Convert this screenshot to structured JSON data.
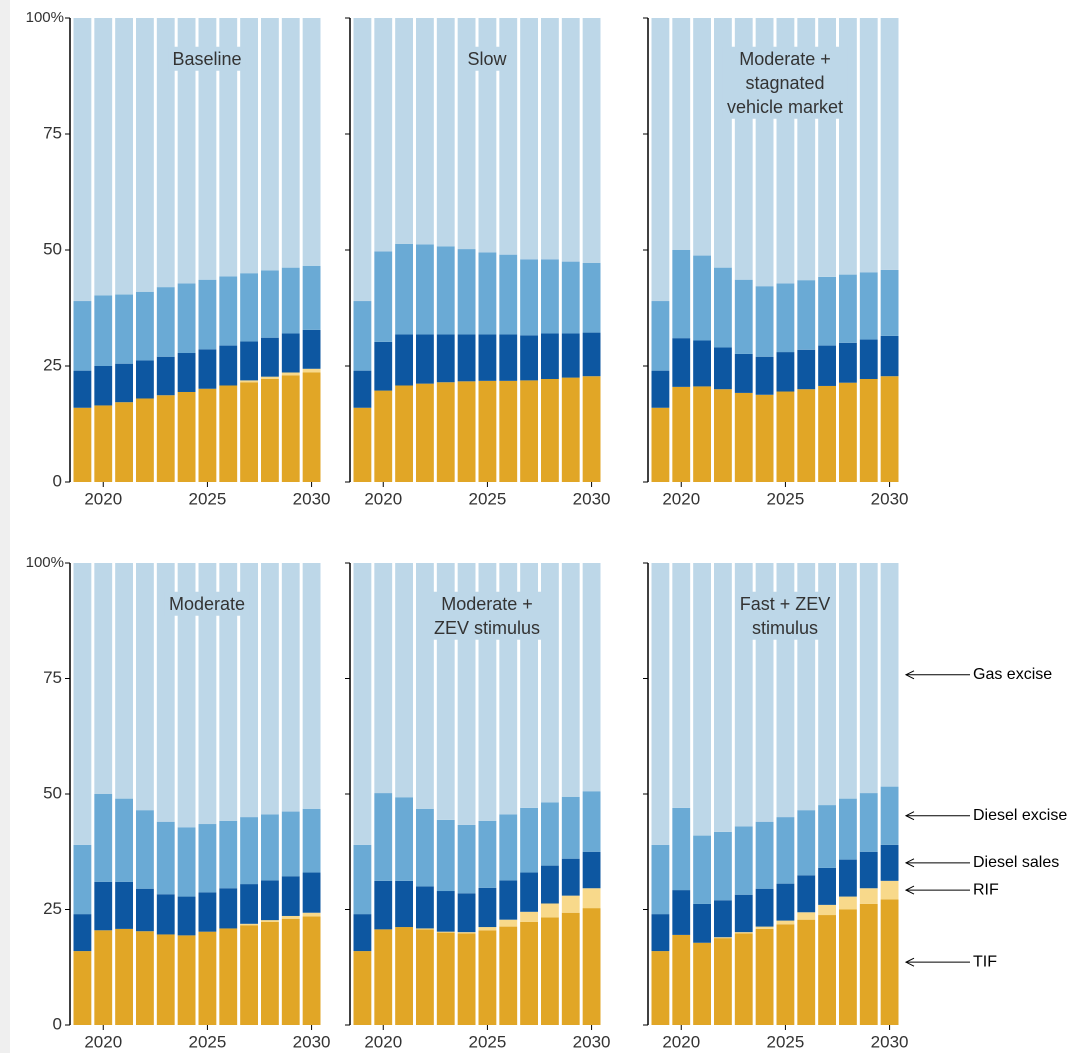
{
  "chart_data": [
    {
      "type": "bar",
      "stacked": true,
      "title": "Baseline",
      "x": [
        2019,
        2020,
        2021,
        2022,
        2023,
        2024,
        2025,
        2026,
        2027,
        2028,
        2029,
        2030
      ],
      "xlim": [
        2018.5,
        2030.5
      ],
      "xticks": [
        2020,
        2025,
        2030
      ],
      "ylim": [
        0,
        100
      ],
      "yticks": [
        0,
        25,
        50,
        75,
        {
          "value": 100,
          "label": "100%"
        }
      ],
      "series": [
        {
          "name": "TIF",
          "color": "#e1a626",
          "values": [
            16,
            16.5,
            17.2,
            18,
            18.7,
            19.4,
            20.1,
            20.8,
            21.5,
            22.2,
            23,
            23.6
          ]
        },
        {
          "name": "RIF",
          "color": "#f8d98b",
          "values": [
            0,
            0,
            0,
            0,
            0,
            0,
            0,
            0,
            0.4,
            0.5,
            0.6,
            0.8
          ]
        },
        {
          "name": "Diesel sales",
          "color": "#0d57a1",
          "values": [
            8,
            8.5,
            8.3,
            8.2,
            8.3,
            8.4,
            8.5,
            8.6,
            8.4,
            8.4,
            8.4,
            8.4
          ]
        },
        {
          "name": "Diesel excise",
          "color": "#6aaad5",
          "values": [
            15,
            15.2,
            14.9,
            14.8,
            15,
            15,
            15,
            14.9,
            14.7,
            14.5,
            14.2,
            13.8
          ]
        },
        {
          "name": "Gas excise",
          "color": "#bdd7e8",
          "values": [
            61,
            59.8,
            59.6,
            59,
            58,
            57.2,
            56.4,
            55.7,
            55,
            54.4,
            53.8,
            53.4
          ]
        }
      ]
    },
    {
      "type": "bar",
      "stacked": true,
      "title": "Slow",
      "x": [
        2019,
        2020,
        2021,
        2022,
        2023,
        2024,
        2025,
        2026,
        2027,
        2028,
        2029,
        2030
      ],
      "xlim": [
        2018.5,
        2030.5
      ],
      "xticks": [
        2020,
        2025,
        2030
      ],
      "ylim": [
        0,
        100
      ],
      "yticks": [
        0,
        25,
        50,
        75,
        {
          "value": 100,
          "label": "100%"
        }
      ],
      "series": [
        {
          "name": "TIF",
          "color": "#e1a626",
          "values": [
            16,
            19.7,
            20.8,
            21.2,
            21.5,
            21.7,
            21.8,
            21.8,
            21.9,
            22.2,
            22.5,
            22.8
          ]
        },
        {
          "name": "RIF",
          "color": "#f8d98b",
          "values": [
            0,
            0,
            0,
            0,
            0,
            0,
            0,
            0,
            0,
            0,
            0,
            0
          ]
        },
        {
          "name": "Diesel sales",
          "color": "#0d57a1",
          "values": [
            8,
            10.5,
            11,
            10.6,
            10.3,
            10.1,
            10,
            10,
            9.7,
            9.8,
            9.5,
            9.4
          ]
        },
        {
          "name": "Diesel excise",
          "color": "#6aaad5",
          "values": [
            15,
            19.5,
            19.5,
            19.4,
            19,
            18.4,
            17.7,
            17.2,
            16.4,
            16,
            15.5,
            15
          ]
        },
        {
          "name": "Gas excise",
          "color": "#bdd7e8",
          "values": [
            61,
            50.3,
            48.7,
            48.8,
            49.2,
            49.8,
            50.5,
            51,
            52,
            52,
            52.5,
            52.8
          ]
        }
      ]
    },
    {
      "type": "bar",
      "stacked": true,
      "title": "Moderate +\nstagnated\nvehicle market",
      "x": [
        2019,
        2020,
        2021,
        2022,
        2023,
        2024,
        2025,
        2026,
        2027,
        2028,
        2029,
        2030
      ],
      "xlim": [
        2018.5,
        2030.5
      ],
      "xticks": [
        2020,
        2025,
        2030
      ],
      "ylim": [
        0,
        100
      ],
      "yticks": [
        0,
        25,
        50,
        75,
        {
          "value": 100,
          "label": "100%"
        }
      ],
      "series": [
        {
          "name": "TIF",
          "color": "#e1a626",
          "values": [
            16,
            20.5,
            20.6,
            20,
            19.2,
            18.8,
            19.5,
            20,
            20.7,
            21.4,
            22.2,
            22.8
          ]
        },
        {
          "name": "RIF",
          "color": "#f8d98b",
          "values": [
            0,
            0,
            0,
            0,
            0,
            0,
            0,
            0,
            0,
            0,
            0,
            0
          ]
        },
        {
          "name": "Diesel sales",
          "color": "#0d57a1",
          "values": [
            8,
            10.5,
            9.9,
            9,
            8.4,
            8.2,
            8.5,
            8.5,
            8.7,
            8.6,
            8.5,
            8.7
          ]
        },
        {
          "name": "Diesel excise",
          "color": "#6aaad5",
          "values": [
            15,
            19,
            18.3,
            17.2,
            16,
            15.2,
            14.8,
            15,
            14.8,
            14.7,
            14.5,
            14.2
          ]
        },
        {
          "name": "Gas excise",
          "color": "#bdd7e8",
          "values": [
            61,
            50,
            51.2,
            53.8,
            56.4,
            57.8,
            57.2,
            56.5,
            55.8,
            55.3,
            54.8,
            54.3
          ]
        }
      ]
    },
    {
      "type": "bar",
      "stacked": true,
      "title": "Moderate",
      "x": [
        2019,
        2020,
        2021,
        2022,
        2023,
        2024,
        2025,
        2026,
        2027,
        2028,
        2029,
        2030
      ],
      "xlim": [
        2018.5,
        2030.5
      ],
      "xticks": [
        2020,
        2025,
        2030
      ],
      "ylim": [
        0,
        100
      ],
      "yticks": [
        0,
        25,
        50,
        75,
        {
          "value": 100,
          "label": "100%"
        }
      ],
      "series": [
        {
          "name": "TIF",
          "color": "#e1a626",
          "values": [
            16,
            20.5,
            20.8,
            20.3,
            19.6,
            19.4,
            20.2,
            20.9,
            21.6,
            22.3,
            23,
            23.5
          ]
        },
        {
          "name": "RIF",
          "color": "#f8d98b",
          "values": [
            0,
            0,
            0,
            0,
            0,
            0,
            0,
            0,
            0.3,
            0.4,
            0.6,
            0.8
          ]
        },
        {
          "name": "Diesel sales",
          "color": "#0d57a1",
          "values": [
            8,
            10.5,
            10.2,
            9.2,
            8.7,
            8.4,
            8.5,
            8.7,
            8.6,
            8.6,
            8.6,
            8.7
          ]
        },
        {
          "name": "Diesel excise",
          "color": "#6aaad5",
          "values": [
            15,
            19,
            18,
            17,
            15.7,
            15,
            14.8,
            14.6,
            14.5,
            14.3,
            14,
            13.8
          ]
        },
        {
          "name": "Gas excise",
          "color": "#bdd7e8",
          "values": [
            61,
            50,
            51,
            53.5,
            56,
            57.2,
            56.5,
            55.8,
            55,
            54.4,
            53.8,
            53.2
          ]
        }
      ]
    },
    {
      "type": "bar",
      "stacked": true,
      "title": "Moderate +\nZEV stimulus",
      "x": [
        2019,
        2020,
        2021,
        2022,
        2023,
        2024,
        2025,
        2026,
        2027,
        2028,
        2029,
        2030
      ],
      "xlim": [
        2018.5,
        2030.5
      ],
      "xticks": [
        2020,
        2025,
        2030
      ],
      "ylim": [
        0,
        100
      ],
      "yticks": [
        0,
        25,
        50,
        75,
        {
          "value": 100,
          "label": "100%"
        }
      ],
      "series": [
        {
          "name": "TIF",
          "color": "#e1a626",
          "values": [
            16,
            20.7,
            21.2,
            20.7,
            20,
            19.8,
            20.5,
            21.3,
            22.3,
            23.3,
            24.3,
            25.3
          ]
        },
        {
          "name": "RIF",
          "color": "#f8d98b",
          "values": [
            0,
            0,
            0,
            0.2,
            0.2,
            0.3,
            0.7,
            1.5,
            2.2,
            3,
            3.7,
            4.3
          ]
        },
        {
          "name": "Diesel sales",
          "color": "#0d57a1",
          "values": [
            8,
            10.5,
            10,
            9.1,
            8.8,
            8.4,
            8.5,
            8.5,
            8.5,
            8.2,
            8,
            7.9
          ]
        },
        {
          "name": "Diesel excise",
          "color": "#6aaad5",
          "values": [
            15,
            19,
            18.1,
            16.8,
            15.4,
            14.8,
            14.5,
            14.3,
            14,
            13.7,
            13.4,
            13.1
          ]
        },
        {
          "name": "Gas excise",
          "color": "#bdd7e8",
          "values": [
            61,
            49.8,
            50.7,
            53.2,
            55.6,
            56.7,
            55.8,
            54.4,
            53,
            51.8,
            50.6,
            49.4
          ]
        }
      ]
    },
    {
      "type": "bar",
      "stacked": true,
      "title": "Fast + ZEV\nstimulus",
      "legend": "right",
      "x": [
        2019,
        2020,
        2021,
        2022,
        2023,
        2024,
        2025,
        2026,
        2027,
        2028,
        2029,
        2030
      ],
      "xlim": [
        2018.5,
        2030.5
      ],
      "xticks": [
        2020,
        2025,
        2030
      ],
      "ylim": [
        0,
        100
      ],
      "yticks": [
        0,
        25,
        50,
        75,
        {
          "value": 100,
          "label": "100%"
        }
      ],
      "series": [
        {
          "name": "TIF",
          "color": "#e1a626",
          "values": [
            16,
            19.5,
            17.8,
            18.8,
            19.8,
            20.8,
            21.8,
            22.8,
            23.8,
            25,
            26.2,
            27.2
          ]
        },
        {
          "name": "RIF",
          "color": "#f8d98b",
          "values": [
            0,
            0,
            0,
            0.2,
            0.3,
            0.5,
            0.8,
            1.6,
            2.2,
            2.8,
            3.4,
            4
          ]
        },
        {
          "name": "Diesel sales",
          "color": "#0d57a1",
          "values": [
            8,
            9.7,
            8.4,
            8,
            8.1,
            8.2,
            8,
            8,
            8,
            8,
            7.9,
            7.8
          ]
        },
        {
          "name": "Diesel excise",
          "color": "#6aaad5",
          "values": [
            15,
            17.8,
            14.8,
            14.8,
            14.8,
            14.5,
            14.4,
            14.1,
            13.6,
            13.2,
            12.7,
            12.6
          ]
        },
        {
          "name": "Gas excise",
          "color": "#bdd7e8",
          "values": [
            61,
            53,
            59,
            58.2,
            57,
            56,
            55,
            53.5,
            52.4,
            51,
            49.8,
            48.4
          ]
        }
      ]
    }
  ]
}
